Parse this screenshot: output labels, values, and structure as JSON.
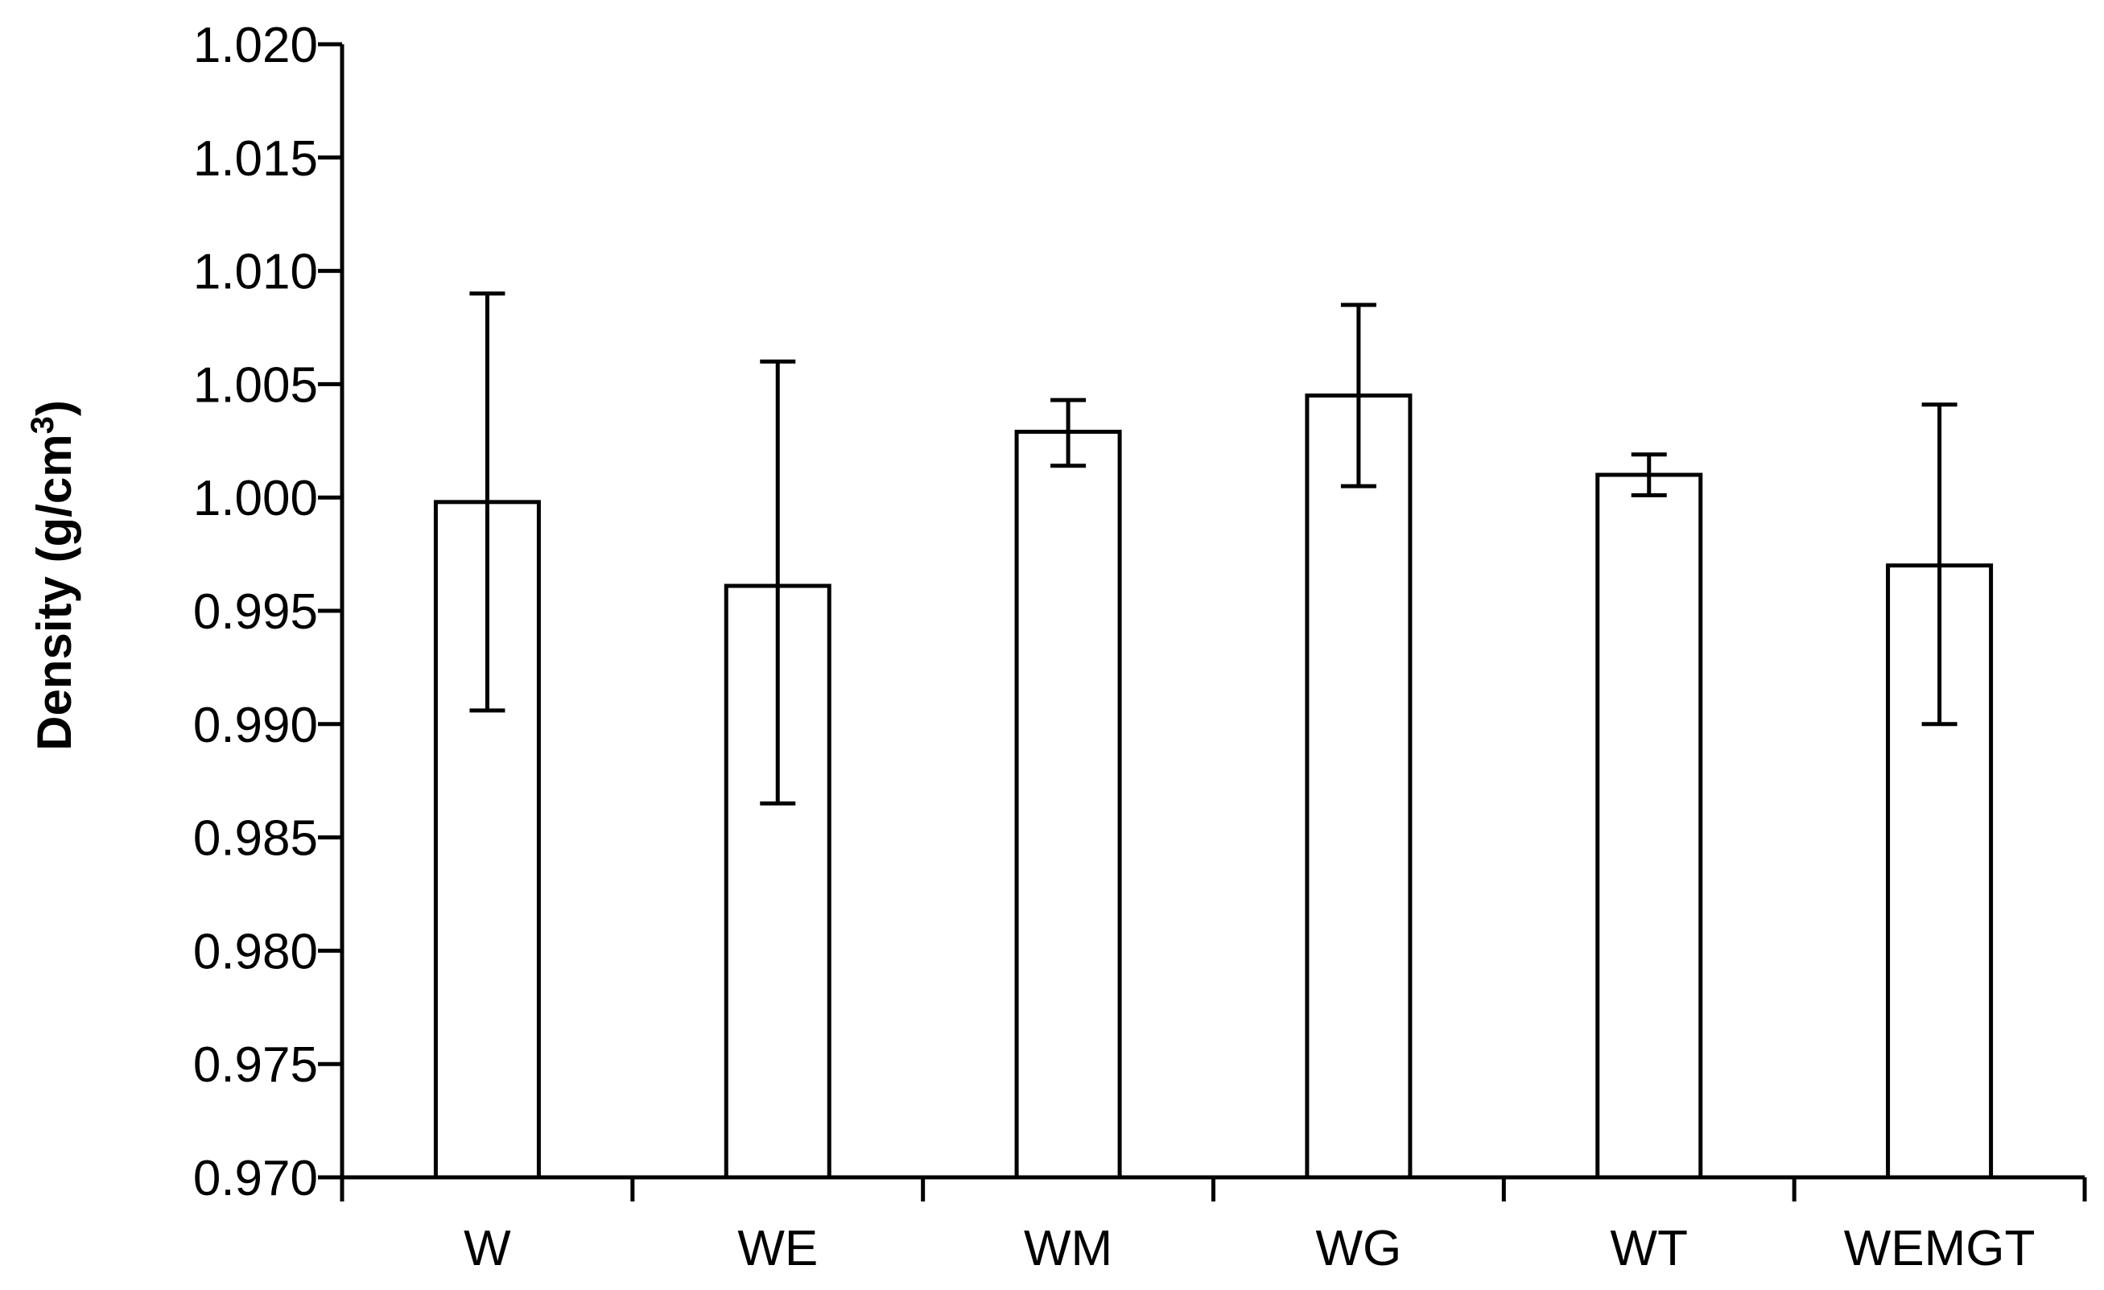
{
  "chart_data": {
    "type": "bar",
    "title": "",
    "xlabel": "",
    "ylabel": "Density (g/cm",
    "ylabel_sup": "3",
    "ylabel_close": ")",
    "categories": [
      "W",
      "WE",
      "WM",
      "WG",
      "WT",
      "WEMGT"
    ],
    "values": [
      0.9998,
      0.9961,
      1.0029,
      1.0045,
      1.001,
      0.997
    ],
    "error_low": [
      0.9906,
      0.9865,
      1.0014,
      1.0005,
      1.0001,
      0.99
    ],
    "error_high": [
      1.009,
      1.006,
      1.0043,
      1.0085,
      1.0019,
      1.0041
    ],
    "ylim": [
      0.97,
      1.02
    ],
    "yticks": [
      "0.970",
      "0.975",
      "0.980",
      "0.985",
      "0.990",
      "0.995",
      "1.000",
      "1.005",
      "1.010",
      "1.015",
      "1.020"
    ],
    "grid": false,
    "legend": "none",
    "colors": {
      "bar_fill": "#ffffff",
      "bar_stroke": "#000000",
      "axis": "#000000"
    }
  }
}
